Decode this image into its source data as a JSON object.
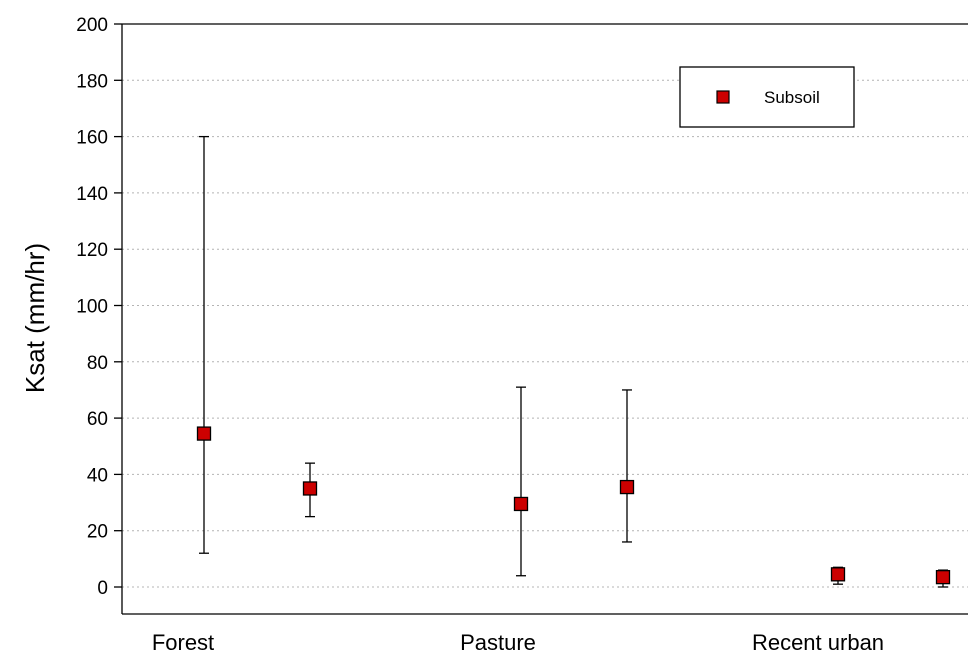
{
  "chart_data": {
    "type": "scatter",
    "title": "",
    "xlabel": "",
    "ylabel": "Ksat (mm/hr)",
    "ylim": [
      0,
      200
    ],
    "yticks": [
      0,
      20,
      40,
      60,
      80,
      100,
      120,
      140,
      160,
      180,
      200
    ],
    "categories": [
      "Forest",
      "Pasture",
      "Recent urban"
    ],
    "grid": true,
    "legend_position": "top-right",
    "series": [
      {
        "name": "Subsoil",
        "color": "#cc0000",
        "marker": "square",
        "points": [
          {
            "group": "Forest",
            "y": 54.5,
            "low": 12,
            "high": 160
          },
          {
            "group": "Forest",
            "y": 35,
            "low": 25,
            "high": 44
          },
          {
            "group": "Pasture",
            "y": 29.5,
            "low": 4,
            "high": 71
          },
          {
            "group": "Pasture",
            "y": 35.5,
            "low": 16,
            "high": 70
          },
          {
            "group": "Recent urban",
            "y": 4.5,
            "low": 1,
            "high": 7
          },
          {
            "group": "Recent urban",
            "y": 3.5,
            "low": 0,
            "high": 6
          }
        ]
      }
    ]
  }
}
